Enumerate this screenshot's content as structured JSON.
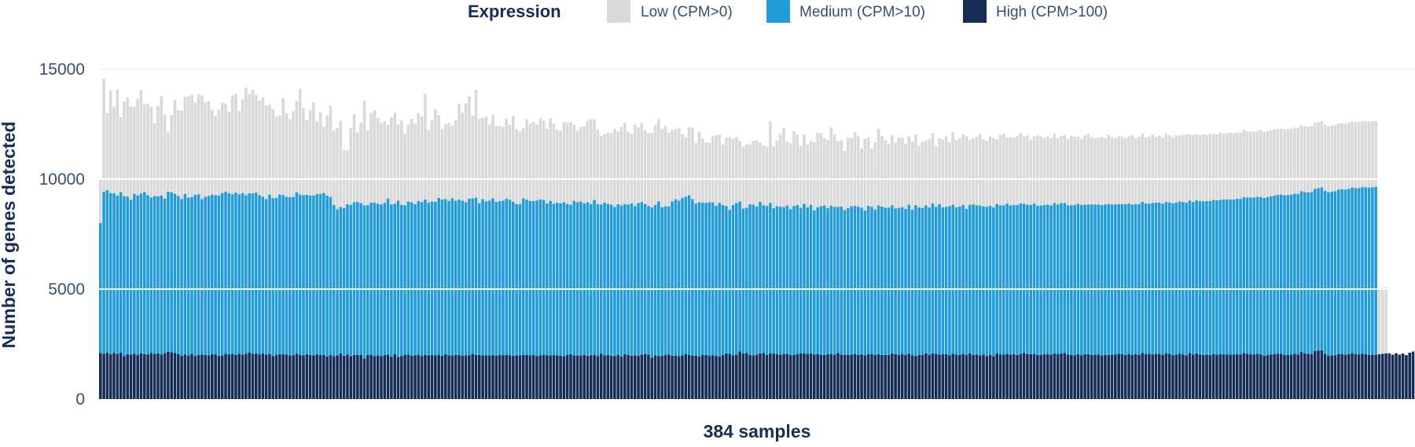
{
  "chart_data": {
    "type": "bar",
    "stacked": true,
    "title": "",
    "xlabel": "384 samples",
    "ylabel": "Number of genes detected",
    "ylim": [
      0,
      15000
    ],
    "yticks": [
      0,
      5000,
      10000,
      15000
    ],
    "ytick_labels": [
      "0",
      "5000",
      "10000",
      "15000"
    ],
    "grid": true,
    "legend": {
      "title": "Expression",
      "placement": "top-center",
      "entries": [
        {
          "key": "low",
          "label": "Low (CPM>0)",
          "color": "#d9d9d9"
        },
        {
          "key": "medium",
          "label": "Medium (CPM>10)",
          "color": "#239bd7"
        },
        {
          "key": "high",
          "label": "High (CPM>100)",
          "color": "#172d55"
        }
      ]
    },
    "n_samples": 384,
    "series": [
      {
        "name": "High (CPM>100)",
        "color": "#172d55",
        "values": [
          2100,
          2055,
          2110,
          2035,
          2090,
          2060,
          2110,
          1960,
          2040,
          2025,
          2060,
          2010,
          2080,
          2045,
          2030,
          2090,
          2050,
          2070,
          2030,
          2085,
          2150,
          2130,
          2100,
          2045,
          1960,
          2020,
          1980,
          2050,
          1960,
          2000,
          2020,
          2010,
          1990,
          2040,
          2020,
          1970,
          1980,
          2060,
          2030,
          2050,
          2000,
          2050,
          2020,
          2060,
          2120,
          2060,
          2080,
          2030,
          2070,
          2020,
          2050,
          1960,
          2000,
          2040,
          2030,
          2030,
          1990,
          1995,
          2060,
          2000,
          1990,
          2040,
          2005,
          1990,
          2030,
          2000,
          2000,
          1940,
          2000,
          1950,
          1980,
          2070,
          1970,
          2020,
          1950,
          2010,
          2010,
          2000,
          1850,
          2010,
          2015,
          1960,
          1985,
          1950,
          2005,
          2020,
          1920,
          2035,
          1915,
          1960,
          2015,
          2020,
          1970,
          1985,
          2010,
          1960,
          2000,
          1990,
          2000,
          1980,
          2000,
          1970,
          2040,
          1990,
          1980,
          2000,
          2010,
          1975,
          1980,
          1995,
          2050,
          2005,
          2000,
          1990,
          1990,
          1980,
          2000,
          1975,
          2010,
          1995,
          2000,
          1990,
          1975,
          1990,
          1990,
          2000,
          2000,
          1990,
          2000,
          1960,
          1985,
          2015,
          1985,
          1985,
          2005,
          1985,
          1970,
          1950,
          2010,
          2035,
          1990,
          1980,
          1975,
          2010,
          1970,
          1990,
          2010,
          1960,
          2060,
          1985,
          2000,
          1970,
          1960,
          2000,
          1930,
          2035,
          2010,
          1970,
          1985,
          1970,
          2015,
          2050,
          2025,
          1875,
          1980,
          1960,
          1960,
          2000,
          2020,
          1975,
          1975,
          1950,
          1990,
          2050,
          2010,
          1975,
          1965,
          1940,
          2005,
          2005,
          1975,
          1995,
          1975,
          1940,
          2005,
          2080,
          2060,
          1990,
          2015,
          2170,
          2070,
          2100,
          2000,
          1990,
          2020,
          2080,
          2090,
          2000,
          2070,
          2065,
          2040,
          2000,
          2050,
          2055,
          2005,
          2000,
          2035,
          2085,
          2070,
          2050,
          2075,
          2025,
          2040,
          2000,
          2005,
          2045,
          2035,
          2015,
          2095,
          2020,
          2000,
          2000,
          2025,
          2050,
          2005,
          2030,
          1995,
          2040,
          2040,
          2010,
          2040,
          2005,
          2005,
          2010,
          2080,
          2045,
          2005,
          2050,
          2000,
          2060,
          1995,
          1960,
          2000,
          2010,
          2080,
          2000,
          2070,
          2060,
          2015,
          2040,
          2035,
          1995,
          2060,
          2020,
          2005,
          2050,
          2010,
          2070,
          2005,
          2020,
          1990,
          2025,
          1955,
          2000,
          1955,
          2070,
          2030,
          2020,
          2050,
          2020,
          2040,
          2005,
          2060,
          2090,
          2045,
          2040,
          2050,
          2005,
          2010,
          2035,
          2045,
          2015,
          2075,
          2050,
          2070,
          2090,
          2025,
          2000,
          1995,
          2035,
          1995,
          2045,
          2035,
          2010,
          2010,
          2030,
          1990,
          2000,
          2010,
          2020,
          2030,
          2060,
          2045,
          2010,
          2035,
          2010,
          2035,
          2000,
          2090,
          2040,
          2050,
          2025,
          2050,
          2050,
          2000,
          2070,
          2060,
          1995,
          2015,
          2065,
          2030,
          1995,
          2095,
          2020,
          2080,
          2030,
          2010,
          2015,
          2010,
          2050,
          2015,
          2035,
          2040,
          2030,
          2020,
          2020,
          2045,
          2025,
          2090,
          2060,
          2040,
          2030,
          2055,
          2030,
          1970,
          2000,
          2025,
          2040,
          2060,
          2060,
          2010,
          2010,
          2015,
          2055,
          2020,
          2140,
          2080,
          2050,
          2050,
          2180,
          2200,
          2220,
          2050,
          1970,
          1990,
          1995,
          2050,
          2045,
          2015,
          2040,
          2085,
          2050,
          2030,
          2060,
          2040,
          2010,
          2015,
          2010,
          2040,
          2055,
          2080,
          2080,
          2015,
          2085,
          2020,
          2070,
          2000,
          2110,
          2160
        ]
      },
      {
        "name": "Medium (CPM>10)",
        "color": "#239bd7",
        "values": [
          5900,
          7370,
          7390,
          7335,
          7265,
          7195,
          7305,
          7270,
          7165,
          7040,
          7270,
          7250,
          7270,
          7365,
          7245,
          7080,
          7185,
          7150,
          7230,
          7035,
          7280,
          7275,
          7235,
          7195,
          7140,
          7310,
          7180,
          7130,
          7325,
          7310,
          7080,
          7185,
          7255,
          7260,
          7255,
          7280,
          7390,
          7370,
          7335,
          7265,
          7390,
          7260,
          7350,
          7205,
          7240,
          7290,
          7310,
          7240,
          7135,
          7075,
          7250,
          7175,
          7145,
          7260,
          7250,
          7165,
          7195,
          7195,
          7345,
          7300,
          7280,
          7250,
          7245,
          7260,
          7295,
          7330,
          7380,
          7310,
          7185,
          6870,
          6650,
          6665,
          6710,
          6840,
          6880,
          6945,
          6960,
          6910,
          6960,
          6800,
          6920,
          6970,
          6900,
          6900,
          6920,
          7100,
          6930,
          6840,
          7110,
          6875,
          6800,
          6960,
          6980,
          6880,
          6990,
          7000,
          7070,
          6950,
          6980,
          6990,
          7145,
          7100,
          7060,
          7020,
          7150,
          7025,
          7060,
          7050,
          6970,
          7120,
          7080,
          7160,
          6900,
          7100,
          7000,
          7050,
          7130,
          6990,
          7000,
          7030,
          7115,
          7075,
          7000,
          6880,
          6880,
          7130,
          7070,
          7025,
          7000,
          7070,
          7090,
          7040,
          6910,
          7030,
          6870,
          6950,
          6935,
          6995,
          6860,
          6800,
          7025,
          6980,
          7005,
          6890,
          6980,
          6880,
          7050,
          6900,
          6790,
          6950,
          6880,
          6870,
          6780,
          6860,
          6880,
          6825,
          6830,
          6930,
          6795,
          6940,
          6945,
          6820,
          6755,
          6840,
          6840,
          7030,
          6765,
          6770,
          6740,
          7010,
          7110,
          7070,
          7150,
          7150,
          7260,
          7115,
          6925,
          7015,
          6930,
          6920,
          6975,
          6950,
          6815,
          6985,
          6820,
          6700,
          6545,
          6840,
          6900,
          6810,
          6595,
          6600,
          6865,
          6850,
          6740,
          6890,
          6725,
          6780,
          6850,
          6620,
          6730,
          6745,
          6680,
          6745,
          6625,
          6780,
          6785,
          6615,
          6805,
          6670,
          6760,
          6560,
          6680,
          6780,
          6800,
          6640,
          6755,
          6720,
          6645,
          6740,
          6590,
          6680,
          6740,
          6735,
          6745,
          6670,
          6585,
          6745,
          6700,
          6610,
          6760,
          6750,
          6700,
          6695,
          6725,
          6630,
          6685,
          6680,
          6650,
          6785,
          6620,
          6860,
          6720,
          6680,
          6730,
          6715,
          6830,
          6685,
          6850,
          6675,
          6710,
          6780,
          6780,
          6700,
          6750,
          6780,
          6640,
          6765,
          6850,
          6795,
          6810,
          6740,
          6790,
          6790,
          6765,
          6800,
          6785,
          6790,
          6840,
          6785,
          6780,
          6815,
          6830,
          6790,
          6790,
          6790,
          6840,
          6790,
          6790,
          6795,
          6800,
          6790,
          6835,
          6800,
          6845,
          6820,
          6790,
          6815,
          6830,
          6850,
          6830,
          6795,
          6815,
          6840,
          6840,
          6810,
          6830,
          6850,
          6860,
          6830,
          6820,
          6800,
          6815,
          6850,
          6855,
          6835,
          6830,
          6870,
          6880,
          6850,
          6835,
          6890,
          6880,
          6880,
          6880,
          6890,
          6885,
          6905,
          6920,
          6920,
          6930,
          6935,
          6935,
          6940,
          6960,
          6975,
          6985,
          6990,
          7000,
          7005,
          7020,
          7025,
          7030,
          7050,
          7050,
          7060,
          7070,
          7080,
          7095,
          7110,
          7125,
          7135,
          7145,
          7160,
          7170,
          7190,
          7200,
          7215,
          7225,
          7240,
          7255,
          7270,
          7280,
          7290,
          7300,
          7310,
          7330,
          7345,
          7360,
          7380,
          7395,
          7410,
          7420,
          7435,
          7445,
          7465,
          7480,
          7495,
          7510,
          7520,
          7535,
          7550,
          7570,
          7580,
          7590,
          7605,
          7620,
          7640
        ]
      },
      {
        "name": "Low (CPM>0)",
        "color": "#d9d9d9",
        "values": [
          2000,
          5150,
          3500,
          4650,
          3950,
          4800,
          3400,
          4300,
          4500,
          4250,
          3950,
          4400,
          4700,
          4000,
          4150,
          4100,
          3300,
          4100,
          4500,
          3800,
          2700,
          3500,
          4250,
          3900,
          4000,
          4400,
          4600,
          4650,
          4200,
          4550,
          4700,
          4300,
          4300,
          3850,
          3600,
          3900,
          4100,
          4000,
          3700,
          4500,
          4500,
          3800,
          4250,
          4900,
          4500,
          4700,
          4450,
          4300,
          4500,
          4250,
          4100,
          4050,
          3700,
          3600,
          4400,
          3800,
          3550,
          3900,
          4150,
          4800,
          3950,
          3400,
          3900,
          4250,
          3300,
          3700,
          3000,
          3650,
          4150,
          3400,
          3700,
          3900,
          2650,
          2450,
          3500,
          4000,
          3150,
          3650,
          4750,
          3400,
          4050,
          4200,
          3900,
          3700,
          3700,
          3350,
          3950,
          4150,
          3450,
          3850,
          3250,
          3500,
          3800,
          3650,
          4000,
          3900,
          4800,
          3300,
          3700,
          4200,
          3750,
          3200,
          3400,
          3550,
          3300,
          3650,
          4350,
          4000,
          4500,
          4650,
          3750,
          4900,
          3850,
          3700,
          3850,
          3450,
          3800,
          3450,
          3400,
          3350,
          3650,
          3400,
          3900,
          3400,
          3300,
          3200,
          3650,
          3500,
          3600,
          3450,
          3700,
          3600,
          3400,
          3750,
          3650,
          3300,
          3300,
          3650,
          3700,
          3750,
          3450,
          3250,
          3400,
          3500,
          3700,
          3850,
          3650,
          3400,
          3100,
          3100,
          3250,
          3250,
          3550,
          3300,
          3550,
          3700,
          3300,
          3150,
          3700,
          3450,
          3600,
          3350,
          3300,
          3400,
          3650,
          3750,
          3550,
          3650,
          3350,
          3250,
          3200,
          3300,
          2900,
          2700,
          3100,
          3250,
          2750,
          3200,
          2900,
          2750,
          2700,
          3000,
          3200,
          3100,
          2750,
          3100,
          3300,
          3000,
          3000,
          2750,
          2800,
          2900,
          2700,
          2900,
          3000,
          2700,
          2700,
          2700,
          3700,
          2800,
          3000,
          3300,
          3600,
          2900,
          3000,
          3400,
          3200,
          2800,
          3150,
          2850,
          2900,
          3100,
          3400,
          3300,
          3050,
          3100,
          3550,
          3300,
          3000,
          3000,
          2700,
          3200,
          3100,
          3350,
          3200,
          2700,
          3250,
          3100,
          2650,
          3050,
          3500,
          3200,
          3050,
          2900,
          3200,
          3000,
          3200,
          3150,
          2950,
          3100,
          3100,
          3200,
          2800,
          3000,
          2950,
          3100,
          3200,
          2750,
          3000,
          3100,
          3200,
          2900,
          3300,
          3050,
          3100,
          3200,
          3300,
          2950,
          3000,
          3100,
          3250,
          3050,
          3000,
          3150,
          3150,
          2950,
          3200,
          3250,
          3000,
          3100,
          3050,
          3150,
          3200,
          3050,
          3150,
          2950,
          3050,
          3200,
          3150,
          3050,
          3100,
          3050,
          3150,
          3000,
          3050,
          3100,
          3000,
          3150,
          3100,
          3050,
          3000,
          3150,
          3200,
          3050,
          3000,
          3050,
          3100,
          3000,
          3150,
          3050,
          3000,
          3100,
          3050,
          3000,
          3050,
          3150,
          3000,
          3050,
          3100,
          3000,
          3050,
          3100,
          3000,
          3050,
          3000,
          3100,
          3050,
          3000,
          3050,
          3000,
          3050,
          3100,
          3000,
          3050,
          3000,
          3000,
          3050,
          3000,
          3050,
          3000,
          3000,
          3050,
          3000,
          3000,
          3050,
          3000,
          3000,
          3000,
          3050,
          3000,
          3000,
          3000,
          3000,
          3050,
          3000,
          3000,
          3000,
          3000,
          3000,
          3000,
          3000,
          3000,
          3000,
          3000,
          3000,
          3000,
          3000,
          3000,
          3000,
          3000,
          3000,
          3000,
          3000,
          3000,
          3000,
          3000,
          3000,
          3000,
          3000,
          3000,
          3000,
          3000,
          3000,
          3000,
          3000,
          3000,
          3000,
          3000,
          3000,
          3000,
          3000
        ]
      }
    ]
  }
}
